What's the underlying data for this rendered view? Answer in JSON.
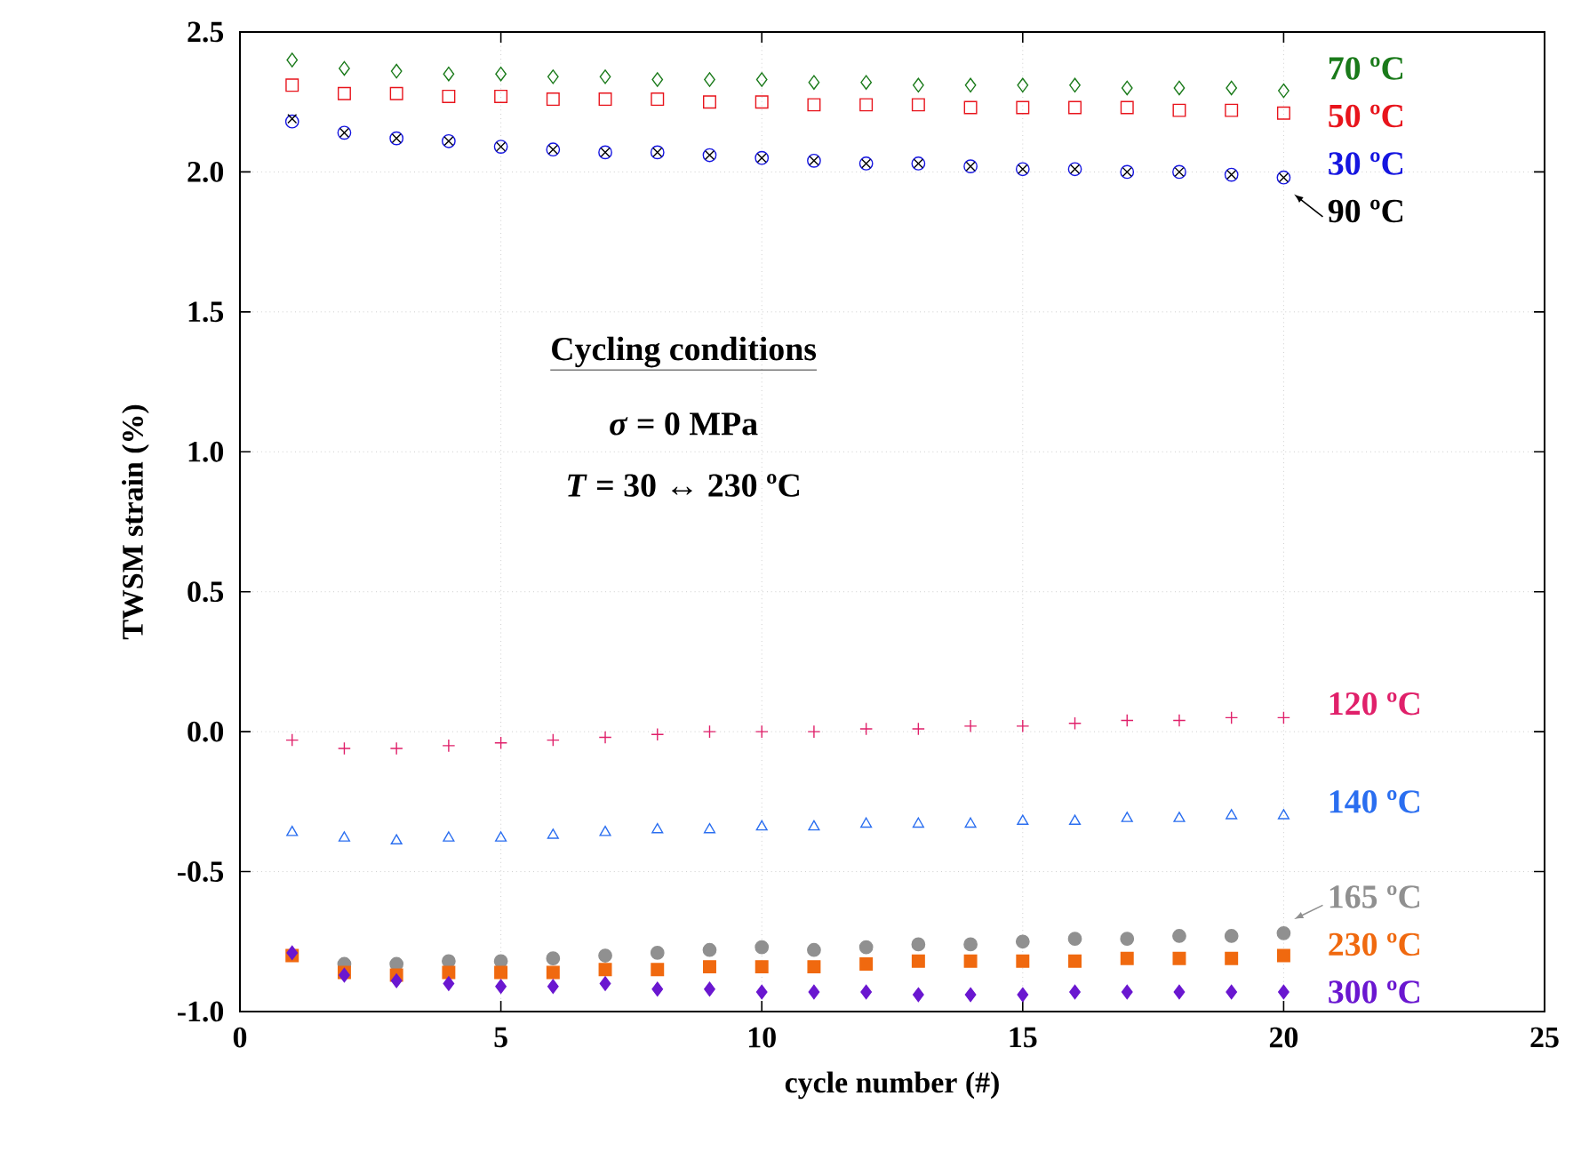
{
  "chart_data": {
    "type": "scatter",
    "xlabel": "cycle number (#)",
    "ylabel": "TWSM strain (%)",
    "x": [
      1,
      2,
      3,
      4,
      5,
      6,
      7,
      8,
      9,
      10,
      11,
      12,
      13,
      14,
      15,
      16,
      17,
      18,
      19,
      20
    ],
    "xlim": [
      0,
      25
    ],
    "xticks": [
      0,
      5,
      10,
      15,
      20,
      25
    ],
    "ylim": [
      -1.0,
      2.5
    ],
    "yticks": [
      {
        "value": -1.0,
        "label": "-1.0"
      },
      -0.5,
      {
        "value": 0.0,
        "label": "0.0"
      },
      0.5,
      {
        "value": 1.0,
        "label": "1.0"
      },
      1.5,
      {
        "value": 2.0,
        "label": "2.0"
      },
      2.5
    ],
    "grid": true,
    "legend": "right",
    "annotations": [
      "Cycling conditions",
      "*σ* = 0 MPa",
      "*T* = 30 ↔ 230 ºC"
    ],
    "series": [
      {
        "name": "70 ºC",
        "color": "#1a7a1a",
        "marker": "diamond",
        "values": [
          2.4,
          2.37,
          2.36,
          2.35,
          2.35,
          2.34,
          2.34,
          2.33,
          2.33,
          2.33,
          2.32,
          2.32,
          2.31,
          2.31,
          2.31,
          2.31,
          2.3,
          2.3,
          2.3,
          2.29
        ]
      },
      {
        "name": "50 ºC",
        "color": "#e8141c",
        "marker": "square",
        "values": [
          2.31,
          2.28,
          2.28,
          2.27,
          2.27,
          2.26,
          2.26,
          2.26,
          2.25,
          2.25,
          2.24,
          2.24,
          2.24,
          2.23,
          2.23,
          2.23,
          2.23,
          2.22,
          2.22,
          2.21
        ]
      },
      {
        "name": "30 ºC",
        "color": "#1515e0",
        "marker": "circle",
        "values": [
          2.18,
          2.14,
          2.12,
          2.11,
          2.09,
          2.08,
          2.07,
          2.07,
          2.06,
          2.05,
          2.04,
          2.03,
          2.03,
          2.02,
          2.01,
          2.01,
          2.0,
          2.0,
          1.99,
          1.98
        ]
      },
      {
        "name": "90 ºC",
        "color": "#000000",
        "marker": "cross",
        "values": [
          2.19,
          2.14,
          2.12,
          2.11,
          2.09,
          2.08,
          2.07,
          2.07,
          2.06,
          2.05,
          2.04,
          2.03,
          2.03,
          2.02,
          2.01,
          2.01,
          2.0,
          2.0,
          1.99,
          1.98
        ]
      },
      {
        "name": "120 ºC",
        "color": "#e0206a",
        "marker": "plus",
        "values": [
          -0.03,
          -0.06,
          -0.06,
          -0.05,
          -0.04,
          -0.03,
          -0.02,
          -0.01,
          0.0,
          0.0,
          0.0,
          0.01,
          0.01,
          0.02,
          0.02,
          0.03,
          0.04,
          0.04,
          0.05,
          0.05
        ]
      },
      {
        "name": "140 ºC",
        "color": "#2a6ef0",
        "marker": "triangle",
        "values": [
          -0.36,
          -0.38,
          -0.39,
          -0.38,
          -0.38,
          -0.37,
          -0.36,
          -0.35,
          -0.35,
          -0.34,
          -0.34,
          -0.33,
          -0.33,
          -0.33,
          -0.32,
          -0.32,
          -0.31,
          -0.31,
          -0.3,
          -0.3
        ]
      },
      {
        "name": "165 ºC",
        "color": "#909090",
        "marker": "circle",
        "values": [
          null,
          -0.83,
          -0.83,
          -0.82,
          -0.82,
          -0.81,
          -0.8,
          -0.79,
          -0.78,
          -0.77,
          -0.78,
          -0.77,
          -0.76,
          -0.76,
          -0.75,
          -0.74,
          -0.74,
          -0.73,
          -0.73,
          -0.72
        ]
      },
      {
        "name": "230 ºC",
        "color": "#f0690f",
        "marker": "square",
        "values": [
          -0.8,
          -0.86,
          -0.87,
          -0.86,
          -0.86,
          -0.86,
          -0.85,
          -0.85,
          -0.84,
          -0.84,
          -0.84,
          -0.83,
          -0.82,
          -0.82,
          -0.82,
          -0.82,
          -0.81,
          -0.81,
          -0.81,
          -0.8
        ]
      },
      {
        "name": "300 ºC",
        "color": "#6a17d0",
        "marker": "diamond",
        "values": [
          -0.79,
          -0.87,
          -0.89,
          -0.9,
          -0.91,
          -0.91,
          -0.9,
          -0.92,
          -0.92,
          -0.93,
          -0.93,
          -0.93,
          -0.94,
          -0.94,
          -0.94,
          -0.93,
          -0.93,
          -0.93,
          -0.93,
          -0.93
        ]
      }
    ]
  }
}
